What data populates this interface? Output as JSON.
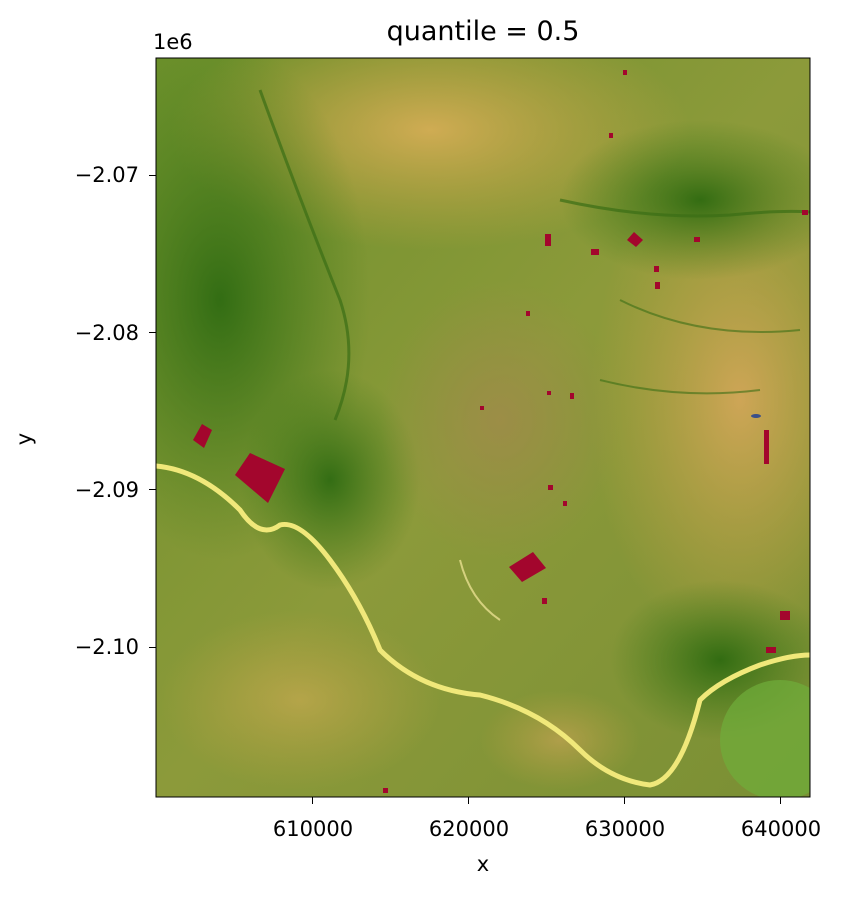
{
  "title": "quantile = 0.5",
  "offset_text": "1e6",
  "xlabel": "x",
  "ylabel": "y",
  "x_ticks": [
    "610000",
    "620000",
    "630000",
    "640000"
  ],
  "y_ticks": [
    "−2.07",
    "−2.08",
    "−2.09",
    "−2.10"
  ],
  "map": {
    "x_range": [
      600000,
      641800
    ],
    "y_range": [
      -2109500,
      -2062500
    ],
    "x_tick_values": [
      610000,
      620000,
      630000,
      640000
    ],
    "y_tick_values": [
      -2070000,
      -2080000,
      -2090000,
      -2100000
    ],
    "colors": {
      "vegetation_dark": "#2f6b12",
      "vegetation": "#5a8a1e",
      "dry_savanna": "#c9a445",
      "river": "#f0e87a",
      "field_patch": "#a3062d",
      "water": "#3a4f8a"
    }
  }
}
